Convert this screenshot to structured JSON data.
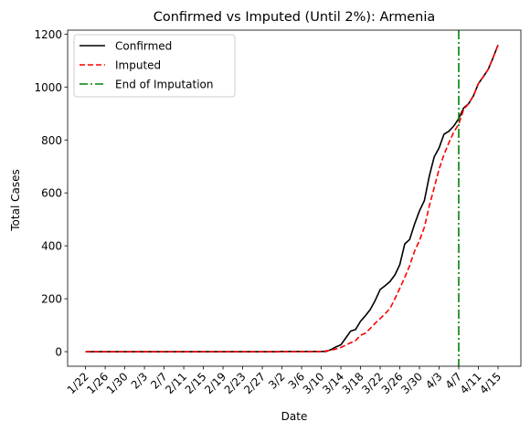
{
  "chart_data": {
    "type": "line",
    "title": "Confirmed vs Imputed (Until 2%): Armenia",
    "xlabel": "Date",
    "ylabel": "Total Cases",
    "ylim": [
      -55,
      1215
    ],
    "xlim": [
      -3.65,
      88.65
    ],
    "yticks": [
      0,
      200,
      400,
      600,
      800,
      1000,
      1200
    ],
    "xticks": [
      {
        "i": 0,
        "label": "1/22"
      },
      {
        "i": 4,
        "label": "1/26"
      },
      {
        "i": 8,
        "label": "1/30"
      },
      {
        "i": 12,
        "label": "2/3"
      },
      {
        "i": 16,
        "label": "2/7"
      },
      {
        "i": 20,
        "label": "2/11"
      },
      {
        "i": 24,
        "label": "2/15"
      },
      {
        "i": 28,
        "label": "2/19"
      },
      {
        "i": 32,
        "label": "2/23"
      },
      {
        "i": 36,
        "label": "2/27"
      },
      {
        "i": 40,
        "label": "3/2"
      },
      {
        "i": 44,
        "label": "3/6"
      },
      {
        "i": 48,
        "label": "3/10"
      },
      {
        "i": 52,
        "label": "3/14"
      },
      {
        "i": 56,
        "label": "3/18"
      },
      {
        "i": 60,
        "label": "3/22"
      },
      {
        "i": 64,
        "label": "3/26"
      },
      {
        "i": 68,
        "label": "3/30"
      },
      {
        "i": 72,
        "label": "4/3"
      },
      {
        "i": 76,
        "label": "4/7"
      },
      {
        "i": 80,
        "label": "4/11"
      },
      {
        "i": 84,
        "label": "4/15"
      }
    ],
    "vline": {
      "x": 76,
      "label": "End of Imputation",
      "color": "#008000"
    },
    "series": [
      {
        "name": "Confirmed",
        "color": "#000000",
        "style": "solid",
        "points": [
          [
            0,
            0
          ],
          [
            39,
            0
          ],
          [
            40,
            1
          ],
          [
            47,
            1
          ],
          [
            48,
            1
          ],
          [
            49,
            1
          ],
          [
            50,
            8
          ],
          [
            51,
            18
          ],
          [
            52,
            26
          ],
          [
            53,
            52
          ],
          [
            54,
            78
          ],
          [
            55,
            84
          ],
          [
            56,
            115
          ],
          [
            57,
            136
          ],
          [
            58,
            160
          ],
          [
            59,
            194
          ],
          [
            60,
            235
          ],
          [
            61,
            249
          ],
          [
            62,
            265
          ],
          [
            63,
            290
          ],
          [
            64,
            329
          ],
          [
            65,
            407
          ],
          [
            66,
            424
          ],
          [
            67,
            482
          ],
          [
            68,
            532
          ],
          [
            69,
            571
          ],
          [
            70,
            663
          ],
          [
            71,
            736
          ],
          [
            72,
            770
          ],
          [
            73,
            822
          ],
          [
            74,
            833
          ],
          [
            75,
            853
          ],
          [
            76,
            881
          ],
          [
            77,
            921
          ],
          [
            78,
            937
          ],
          [
            79,
            967
          ],
          [
            80,
            1013
          ],
          [
            81,
            1039
          ],
          [
            82,
            1067
          ],
          [
            83,
            1111
          ],
          [
            84,
            1159
          ]
        ]
      },
      {
        "name": "Imputed",
        "color": "#ff0000",
        "style": "dashed",
        "points": [
          [
            0,
            0
          ],
          [
            47,
            0
          ],
          [
            48,
            1
          ],
          [
            49,
            3
          ],
          [
            50,
            6
          ],
          [
            51,
            10
          ],
          [
            52,
            16
          ],
          [
            53,
            25
          ],
          [
            54,
            34
          ],
          [
            55,
            42
          ],
          [
            56,
            62
          ],
          [
            57,
            70
          ],
          [
            58,
            88
          ],
          [
            59,
            108
          ],
          [
            60,
            125
          ],
          [
            61,
            143
          ],
          [
            62,
            163
          ],
          [
            63,
            200
          ],
          [
            64,
            240
          ],
          [
            65,
            280
          ],
          [
            66,
            325
          ],
          [
            67,
            380
          ],
          [
            68,
            420
          ],
          [
            69,
            470
          ],
          [
            70,
            550
          ],
          [
            71,
            620
          ],
          [
            72,
            690
          ],
          [
            73,
            745
          ],
          [
            74,
            790
          ],
          [
            75,
            830
          ],
          [
            76,
            860
          ],
          [
            77,
            915
          ],
          [
            78,
            937
          ],
          [
            79,
            967
          ],
          [
            80,
            1013
          ],
          [
            81,
            1039
          ],
          [
            82,
            1067
          ],
          [
            83,
            1111
          ],
          [
            84,
            1159
          ]
        ]
      }
    ],
    "legend": {
      "placement": "top-left",
      "entries": [
        {
          "label": "Confirmed",
          "color": "#000000",
          "style": "solid"
        },
        {
          "label": "Imputed",
          "color": "#ff0000",
          "style": "dashed"
        },
        {
          "label": "End of Imputation",
          "color": "#008000",
          "style": "dashdot"
        }
      ]
    }
  }
}
